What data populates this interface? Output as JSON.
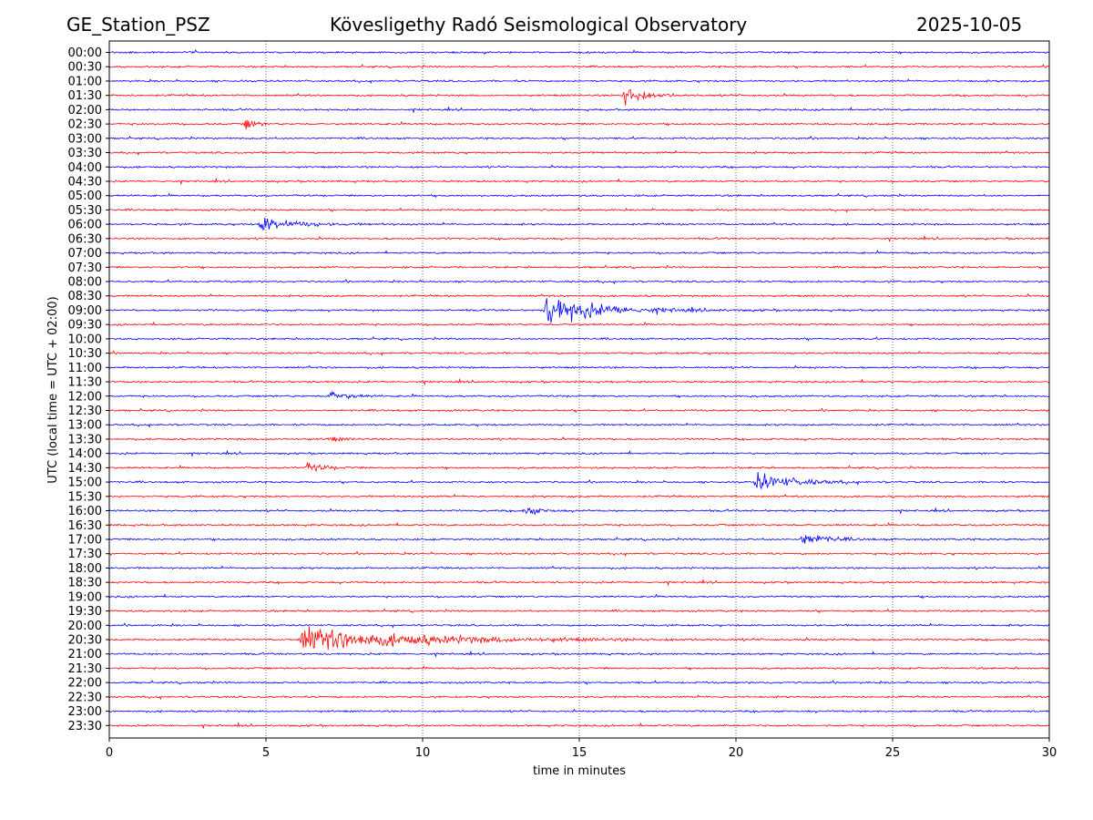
{
  "header": {
    "station": "GE_Station_PSZ",
    "observatory": "Kövesligethy Radó Seismological Observatory",
    "date": "2025-10-05"
  },
  "chart_data": {
    "type": "line",
    "title": "Kövesligethy Radó Seismological Observatory",
    "xlabel": "time in minutes",
    "ylabel": "UTC (local time = UTC + 02:00)",
    "xlim": [
      0,
      30
    ],
    "x_ticks": [
      0,
      5,
      10,
      15,
      20,
      25,
      30
    ],
    "grid": "vertical dotted lines at each 5 minutes",
    "trace_colors": [
      "#0000ff",
      "#ff0000"
    ],
    "rows": [
      "00:00",
      "00:30",
      "01:00",
      "01:30",
      "02:00",
      "02:30",
      "03:00",
      "03:30",
      "04:00",
      "04:30",
      "05:00",
      "05:30",
      "06:00",
      "06:30",
      "07:00",
      "07:30",
      "08:00",
      "08:30",
      "09:00",
      "09:30",
      "10:00",
      "10:30",
      "11:00",
      "11:30",
      "12:00",
      "12:30",
      "13:00",
      "13:30",
      "14:00",
      "14:30",
      "15:00",
      "15:30",
      "16:00",
      "16:30",
      "17:00",
      "17:30",
      "18:00",
      "18:30",
      "19:00",
      "19:30",
      "20:00",
      "20:30",
      "21:00",
      "21:30",
      "22:00",
      "22:30",
      "23:00",
      "23:30"
    ],
    "events": [
      {
        "row": "01:30",
        "onset_min": 16.4,
        "duration_min": 1.6,
        "amplitude": 1.6
      },
      {
        "row": "02:30",
        "onset_min": 4.3,
        "duration_min": 0.8,
        "amplitude": 0.9
      },
      {
        "row": "06:00",
        "onset_min": 4.8,
        "duration_min": 2.6,
        "amplitude": 1.2
      },
      {
        "row": "09:00",
        "onset_min": 13.9,
        "duration_min": 4.5,
        "amplitude": 2.2
      },
      {
        "row": "12:00",
        "onset_min": 7.0,
        "duration_min": 1.5,
        "amplitude": 0.7
      },
      {
        "row": "13:30",
        "onset_min": 7.0,
        "duration_min": 1.0,
        "amplitude": 0.35
      },
      {
        "row": "14:30",
        "onset_min": 6.3,
        "duration_min": 1.3,
        "amplitude": 0.7
      },
      {
        "row": "15:00",
        "onset_min": 20.6,
        "duration_min": 3.0,
        "amplitude": 1.4
      },
      {
        "row": "16:00",
        "onset_min": 13.2,
        "duration_min": 1.1,
        "amplitude": 0.8
      },
      {
        "row": "17:00",
        "onset_min": 22.1,
        "duration_min": 1.8,
        "amplitude": 1.1
      },
      {
        "row": "20:30",
        "onset_min": 6.1,
        "duration_min": 10.0,
        "amplitude": 1.8
      }
    ]
  }
}
